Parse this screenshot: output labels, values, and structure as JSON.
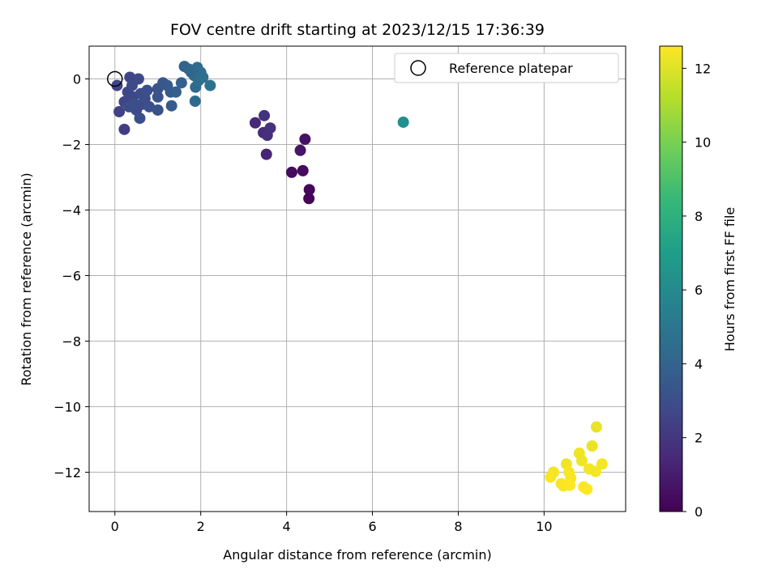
{
  "chart_data": {
    "type": "scatter",
    "title": "FOV centre drift starting at 2023/12/15 17:36:39",
    "xlabel": "Angular distance from reference (arcmin)",
    "ylabel": "Rotation from reference (arcmin)",
    "xlim": [
      -0.6,
      11.9
    ],
    "ylim": [
      -13.2,
      1.0
    ],
    "xticks": [
      0,
      2,
      4,
      6,
      8,
      10
    ],
    "yticks": [
      0,
      -2,
      -4,
      -6,
      -8,
      -10,
      -12
    ],
    "xtick_labels": [
      "0",
      "2",
      "4",
      "6",
      "8",
      "10"
    ],
    "ytick_labels": [
      "0",
      "−2",
      "−4",
      "−6",
      "−8",
      "−10",
      "−12"
    ],
    "grid": true,
    "legend": {
      "placement": "top-right",
      "entries": [
        "Reference platepar"
      ]
    },
    "reference_point": {
      "x": 0,
      "y": 0
    },
    "colorbar": {
      "label": "Hours from first FF file",
      "range": [
        0,
        12.6
      ],
      "ticks": [
        0,
        2,
        4,
        6,
        8,
        10,
        12
      ],
      "tick_labels": [
        "0",
        "2",
        "4",
        "6",
        "8",
        "10",
        "12"
      ],
      "colormap": "viridis"
    },
    "points": [
      {
        "x": 4.52,
        "y": -3.65,
        "h": 0.1
      },
      {
        "x": 4.53,
        "y": -3.38,
        "h": 0.2
      },
      {
        "x": 4.12,
        "y": -2.85,
        "h": 0.35
      },
      {
        "x": 4.38,
        "y": -2.8,
        "h": 0.4
      },
      {
        "x": 4.43,
        "y": -1.84,
        "h": 0.6
      },
      {
        "x": 4.32,
        "y": -2.18,
        "h": 0.7
      },
      {
        "x": 3.53,
        "y": -2.3,
        "h": 1.3
      },
      {
        "x": 3.27,
        "y": -1.34,
        "h": 1.5
      },
      {
        "x": 3.46,
        "y": -1.64,
        "h": 1.6
      },
      {
        "x": 3.55,
        "y": -1.72,
        "h": 1.7
      },
      {
        "x": 3.62,
        "y": -1.5,
        "h": 1.8
      },
      {
        "x": 3.48,
        "y": -1.12,
        "h": 1.9
      },
      {
        "x": 0.22,
        "y": -1.54,
        "h": 2.2
      },
      {
        "x": 0.1,
        "y": -1.0,
        "h": 2.4
      },
      {
        "x": 0.05,
        "y": -0.2,
        "h": 2.5
      },
      {
        "x": 0.22,
        "y": -0.7,
        "h": 2.6
      },
      {
        "x": 0.3,
        "y": -0.4,
        "h": 2.6
      },
      {
        "x": 0.35,
        "y": 0.05,
        "h": 2.7
      },
      {
        "x": 0.42,
        "y": -0.55,
        "h": 2.7
      },
      {
        "x": 0.5,
        "y": -0.95,
        "h": 2.8
      },
      {
        "x": 0.55,
        "y": 0.0,
        "h": 2.8
      },
      {
        "x": 0.6,
        "y": -0.45,
        "h": 2.9
      },
      {
        "x": 0.62,
        "y": -0.78,
        "h": 2.9
      },
      {
        "x": 0.58,
        "y": -1.2,
        "h": 3.0
      },
      {
        "x": 0.7,
        "y": -0.6,
        "h": 3.0
      },
      {
        "x": 0.75,
        "y": -0.35,
        "h": 3.1
      },
      {
        "x": 0.8,
        "y": -0.85,
        "h": 3.1
      },
      {
        "x": 0.4,
        "y": -0.2,
        "h": 2.9
      },
      {
        "x": 0.33,
        "y": -0.85,
        "h": 3.0
      },
      {
        "x": 0.45,
        "y": -0.75,
        "h": 3.1
      },
      {
        "x": 1.0,
        "y": -0.55,
        "h": 3.2
      },
      {
        "x": 1.0,
        "y": -0.95,
        "h": 3.2
      },
      {
        "x": 1.0,
        "y": -0.3,
        "h": 3.3
      },
      {
        "x": 1.12,
        "y": -0.12,
        "h": 3.4
      },
      {
        "x": 1.22,
        "y": -0.2,
        "h": 3.5
      },
      {
        "x": 1.3,
        "y": -0.4,
        "h": 3.6
      },
      {
        "x": 1.32,
        "y": -0.82,
        "h": 3.6
      },
      {
        "x": 1.42,
        "y": -0.4,
        "h": 3.8
      },
      {
        "x": 1.55,
        "y": -0.12,
        "h": 3.9
      },
      {
        "x": 1.62,
        "y": 0.38,
        "h": 4.0
      },
      {
        "x": 1.72,
        "y": 0.3,
        "h": 4.1
      },
      {
        "x": 1.78,
        "y": 0.2,
        "h": 4.2
      },
      {
        "x": 1.85,
        "y": 0.1,
        "h": 4.2
      },
      {
        "x": 1.88,
        "y": -0.25,
        "h": 4.3
      },
      {
        "x": 1.87,
        "y": -0.68,
        "h": 4.3
      },
      {
        "x": 1.92,
        "y": 0.35,
        "h": 4.4
      },
      {
        "x": 1.95,
        "y": -0.05,
        "h": 4.5
      },
      {
        "x": 2.0,
        "y": 0.2,
        "h": 4.5
      },
      {
        "x": 2.05,
        "y": 0.05,
        "h": 4.6
      },
      {
        "x": 2.22,
        "y": -0.2,
        "h": 4.7
      },
      {
        "x": 6.72,
        "y": -1.32,
        "h": 6.2
      },
      {
        "x": 11.22,
        "y": -10.62,
        "h": 12.2
      },
      {
        "x": 11.12,
        "y": -11.2,
        "h": 12.2
      },
      {
        "x": 10.82,
        "y": -11.42,
        "h": 12.3
      },
      {
        "x": 10.88,
        "y": -11.65,
        "h": 12.3
      },
      {
        "x": 10.52,
        "y": -11.75,
        "h": 12.3
      },
      {
        "x": 11.35,
        "y": -11.75,
        "h": 12.4
      },
      {
        "x": 11.05,
        "y": -11.9,
        "h": 12.4
      },
      {
        "x": 11.2,
        "y": -11.98,
        "h": 12.4
      },
      {
        "x": 10.22,
        "y": -12.0,
        "h": 12.4
      },
      {
        "x": 10.58,
        "y": -12.0,
        "h": 12.5
      },
      {
        "x": 10.15,
        "y": -12.15,
        "h": 12.5
      },
      {
        "x": 10.62,
        "y": -12.18,
        "h": 12.5
      },
      {
        "x": 10.4,
        "y": -12.35,
        "h": 12.5
      },
      {
        "x": 10.45,
        "y": -12.42,
        "h": 12.5
      },
      {
        "x": 10.6,
        "y": -12.4,
        "h": 12.6
      },
      {
        "x": 10.92,
        "y": -12.45,
        "h": 12.6
      },
      {
        "x": 11.0,
        "y": -12.52,
        "h": 12.6
      }
    ]
  }
}
